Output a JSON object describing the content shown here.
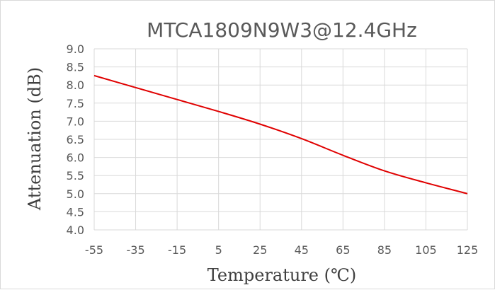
{
  "chart_data": {
    "type": "line",
    "title": "MTCA1809N9W3@12.4GHz",
    "xlabel": "Temperature (℃)",
    "ylabel": "Attenuation (dB)",
    "x": [
      -55,
      -35,
      -15,
      5,
      25,
      45,
      65,
      85,
      105,
      125
    ],
    "xticks": [
      "-55",
      "-35",
      "-15",
      "5",
      "25",
      "45",
      "65",
      "85",
      "105",
      "125"
    ],
    "yticks": [
      "4.0",
      "4.5",
      "5.0",
      "5.5",
      "6.0",
      "6.5",
      "7.0",
      "7.5",
      "8.0",
      "8.5",
      "9.0"
    ],
    "ylim": [
      4.0,
      9.0
    ],
    "grid": true,
    "legend": "none",
    "series": [
      {
        "color": "#e00000",
        "values": [
          8.26,
          7.93,
          7.6,
          7.27,
          6.92,
          6.52,
          6.06,
          5.63,
          5.3,
          5.0
        ]
      }
    ]
  }
}
